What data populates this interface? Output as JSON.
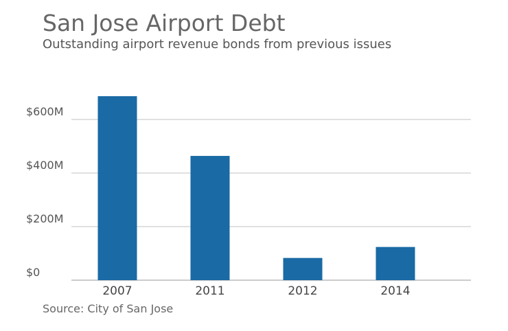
{
  "chart_data": {
    "type": "bar",
    "title": "San Jose Airport Debt",
    "subtitle": "Outstanding airport revenue bonds from previous issues",
    "source": "Source: City of San Jose",
    "categories": [
      "2007",
      "2011",
      "2012",
      "2014"
    ],
    "values": [
      687,
      464,
      83,
      124
    ],
    "unit": "million USD",
    "ylim": [
      0,
      700
    ],
    "yticks": [
      {
        "value": 0,
        "label": "$0"
      },
      {
        "value": 200,
        "label": "$200M"
      },
      {
        "value": 400,
        "label": "$400M"
      },
      {
        "value": 600,
        "label": "$600M"
      }
    ],
    "grid": true,
    "colors": {
      "bar": "#1a6aa5",
      "grid": "#d6d6d6",
      "axis": "#bbbbbb"
    }
  }
}
